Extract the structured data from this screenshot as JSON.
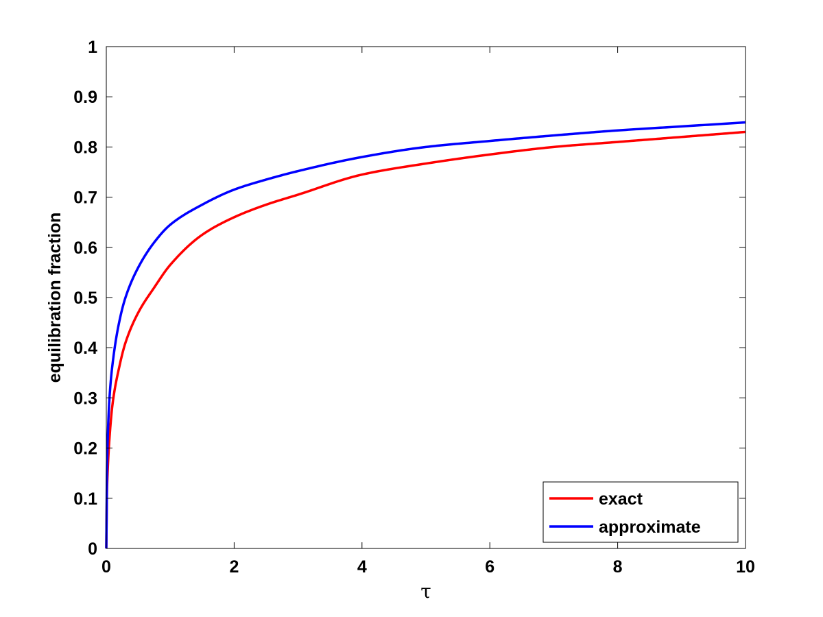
{
  "chart_data": {
    "type": "line",
    "title": "",
    "xlabel": "τ",
    "ylabel": "equilibration fraction",
    "xlim": [
      0,
      10
    ],
    "ylim": [
      0,
      1
    ],
    "xticks": [
      0,
      2,
      4,
      6,
      8,
      10
    ],
    "yticks": [
      0,
      0.1,
      0.2,
      0.3,
      0.4,
      0.5,
      0.6,
      0.7,
      0.8,
      0.9,
      1
    ],
    "xtick_labels": [
      "0",
      "2",
      "4",
      "6",
      "8",
      "10"
    ],
    "ytick_labels": [
      "0",
      "0.1",
      "0.2",
      "0.3",
      "0.4",
      "0.5",
      "0.6",
      "0.7",
      "0.8",
      "0.9",
      "1"
    ],
    "grid": false,
    "legend_position": "bottom-right",
    "series": [
      {
        "name": "exact",
        "color": "#ff0000",
        "x": [
          0,
          0.005,
          0.01,
          0.02,
          0.05,
          0.1,
          0.2,
          0.3,
          0.5,
          0.75,
          1,
          1.5,
          2,
          2.5,
          3,
          4,
          5,
          6,
          7,
          8,
          9,
          10
        ],
        "y": [
          0,
          0.06,
          0.11,
          0.15,
          0.22,
          0.29,
          0.36,
          0.41,
          0.47,
          0.52,
          0.565,
          0.625,
          0.66,
          0.685,
          0.705,
          0.745,
          0.767,
          0.785,
          0.8,
          0.81,
          0.82,
          0.83
        ]
      },
      {
        "name": "approximate",
        "color": "#0000ff",
        "x": [
          0,
          0.005,
          0.01,
          0.02,
          0.05,
          0.1,
          0.2,
          0.3,
          0.5,
          0.75,
          1,
          1.5,
          2,
          2.5,
          3,
          4,
          5,
          6,
          7,
          8,
          9,
          10
        ],
        "y": [
          0,
          0.07,
          0.15,
          0.21,
          0.3,
          0.37,
          0.45,
          0.5,
          0.56,
          0.61,
          0.645,
          0.685,
          0.715,
          0.735,
          0.752,
          0.78,
          0.8,
          0.812,
          0.823,
          0.833,
          0.841,
          0.849
        ]
      }
    ]
  }
}
